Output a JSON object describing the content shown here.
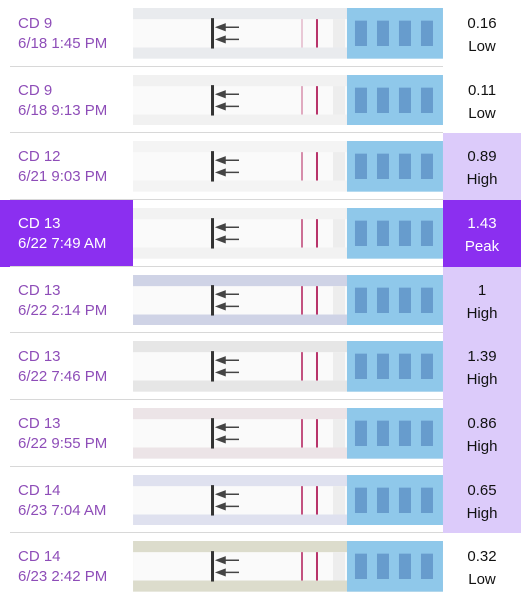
{
  "rows": [
    {
      "day": "CD 9",
      "time": "6/18 1:45 PM",
      "value": 0.16,
      "level": "Low"
    },
    {
      "day": "CD 9",
      "time": "6/18 9:13 PM",
      "value": 0.11,
      "level": "Low"
    },
    {
      "day": "CD 12",
      "time": "6/21 9:03 PM",
      "value": 0.89,
      "level": "High"
    },
    {
      "day": "CD 13",
      "time": "6/22 7:49 AM",
      "value": 1.43,
      "level": "Peak"
    },
    {
      "day": "CD 13",
      "time": "6/22 2:14 PM",
      "value": 1,
      "level": "High"
    },
    {
      "day": "CD 13",
      "time": "6/22 7:46 PM",
      "value": 1.39,
      "level": "High"
    },
    {
      "day": "CD 13",
      "time": "6/22 9:55 PM",
      "value": 0.86,
      "level": "High"
    },
    {
      "day": "CD 14",
      "time": "6/23 7:04 AM",
      "value": 0.65,
      "level": "High"
    },
    {
      "day": "CD 14",
      "time": "6/23 2:42 PM",
      "value": 0.32,
      "level": "Low"
    }
  ]
}
